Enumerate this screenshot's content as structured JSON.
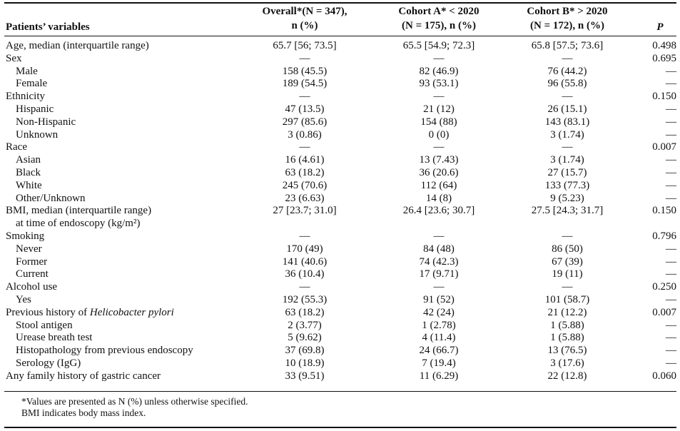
{
  "header": {
    "variables": "Patients’ variables",
    "overall_line1": "Overall*(N = 347),",
    "overall_line2": "n (%)",
    "cohort_a_line1": "Cohort A* < 2020",
    "cohort_a_line2": "(N = 175), n (%)",
    "cohort_b_line1": "Cohort B* > 2020",
    "cohort_b_line2": "(N = 172), n (%)",
    "p": "P"
  },
  "rows": [
    {
      "label": "Age, median (interquartile range)",
      "overall": "65.7 [56; 73.5]",
      "a": "65.5 [54.9; 72.3]",
      "b": "65.8 [57.5; 73.6]",
      "p": "0.498"
    },
    {
      "label": "Sex",
      "overall": "—",
      "a": "—",
      "b": "—",
      "p": "0.695"
    },
    {
      "label": "Male",
      "overall": "158 (45.5)",
      "a": "82 (46.9)",
      "b": "76 (44.2)",
      "p": "—"
    },
    {
      "label": "Female",
      "overall": "189 (54.5)",
      "a": "93 (53.1)",
      "b": "96 (55.8)",
      "p": "—"
    },
    {
      "label": "Ethnicity",
      "overall": "—",
      "a": "—",
      "b": "—",
      "p": "0.150"
    },
    {
      "label": "Hispanic",
      "overall": "47 (13.5)",
      "a": "21 (12)",
      "b": "26 (15.1)",
      "p": "—"
    },
    {
      "label": "Non-Hispanic",
      "overall": "297 (85.6)",
      "a": "154 (88)",
      "b": "143 (83.1)",
      "p": "—"
    },
    {
      "label": "Unknown",
      "overall": "3 (0.86)",
      "a": "0 (0)",
      "b": "3 (1.74)",
      "p": "—"
    },
    {
      "label": "Race",
      "overall": "—",
      "a": "—",
      "b": "—",
      "p": "0.007"
    },
    {
      "label": "Asian",
      "overall": "16 (4.61)",
      "a": "13 (7.43)",
      "b": "3 (1.74)",
      "p": "—"
    },
    {
      "label": "Black",
      "overall": "63 (18.2)",
      "a": "36 (20.6)",
      "b": "27 (15.7)",
      "p": "—"
    },
    {
      "label": "White",
      "overall": "245 (70.6)",
      "a": "112 (64)",
      "b": "133 (77.3)",
      "p": "—"
    },
    {
      "label": "Other/Unknown",
      "overall": "23 (6.63)",
      "a": "14 (8)",
      "b": "9 (5.23)",
      "p": "—"
    },
    {
      "label": "BMI, median (interquartile range)",
      "label2": "at time of endoscopy (kg/m²)",
      "overall": "27 [23.7; 31.0]",
      "a": "26.4 [23.6; 30.7]",
      "b": "27.5 [24.3; 31.7]",
      "p": "0.150"
    },
    {
      "label": "Smoking",
      "overall": "—",
      "a": "—",
      "b": "—",
      "p": "0.796"
    },
    {
      "label": "Never",
      "overall": "170 (49)",
      "a": "84 (48)",
      "b": "86 (50)",
      "p": "—"
    },
    {
      "label": "Former",
      "overall": "141 (40.6)",
      "a": "74 (42.3)",
      "b": "67 (39)",
      "p": "—"
    },
    {
      "label": "Current",
      "overall": "36 (10.4)",
      "a": "17 (9.71)",
      "b": "19 (11)",
      "p": "—"
    },
    {
      "label": "Alcohol use",
      "overall": "—",
      "a": "—",
      "b": "—",
      "p": "0.250"
    },
    {
      "label": "Yes",
      "overall": "192 (55.3)",
      "a": "91 (52)",
      "b": "101 (58.7)",
      "p": "—"
    },
    {
      "label": "Previous history of ",
      "label_italic": "Helicobacter pylori",
      "overall": "63 (18.2)",
      "a": "42 (24)",
      "b": "21 (12.2)",
      "p": "0.007"
    },
    {
      "label": "Stool antigen",
      "overall": "2 (3.77)",
      "a": "1 (2.78)",
      "b": "1 (5.88)",
      "p": "—"
    },
    {
      "label": "Urease breath test",
      "overall": "5 (9.62)",
      "a": "4 (11.4)",
      "b": "1 (5.88)",
      "p": "—"
    },
    {
      "label": "Histopathology from previous endoscopy",
      "overall": "37 (69.8)",
      "a": "24 (66.7)",
      "b": "13 (76.5)",
      "p": "—"
    },
    {
      "label": "Serology (IgG)",
      "overall": "10 (18.9)",
      "a": "7 (19.4)",
      "b": "3 (17.6)",
      "p": "—"
    },
    {
      "label": "Any family history of gastric cancer",
      "overall": "33 (9.51)",
      "a": "11 (6.29)",
      "b": "22 (12.8)",
      "p": "0.060"
    }
  ],
  "footnotes": {
    "note1": "*Values are presented as N (%) unless otherwise specified.",
    "note2": "BMI indicates body mass index."
  }
}
